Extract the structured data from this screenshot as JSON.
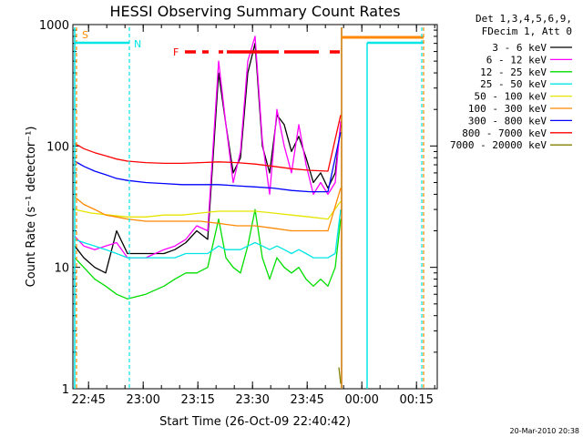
{
  "chart_data": {
    "type": "line",
    "title": "HESSI Observing Summary Count Rates",
    "xlabel": "Start Time (26-Oct-09 22:40:42)",
    "ylabel": "Count Rate (s⁻¹ detector⁻¹)",
    "x_unit": "minutes after 22:40:42",
    "xlim": [
      0,
      100
    ],
    "ylim": [
      1,
      1000
    ],
    "y_scale": "log",
    "x_tick_labels": [
      "22:45",
      "23:00",
      "23:15",
      "23:30",
      "23:45",
      "00:00",
      "00:15"
    ],
    "y_tick_labels": [
      "1",
      "10",
      "100",
      "1000"
    ],
    "legend_header": [
      "Det 1,3,4,5,6,9,",
      "FDecim 1, Att 0"
    ],
    "series": [
      {
        "name": "3 - 6 keV",
        "color": "#000000",
        "x": [
          0.5,
          3,
          6,
          9,
          12,
          15,
          20,
          25,
          28,
          31,
          34,
          37,
          40,
          42,
          44,
          46,
          48,
          50,
          52,
          54,
          56,
          58,
          60,
          62,
          64,
          66,
          68,
          70,
          72,
          73.5
        ],
        "y": [
          15,
          12,
          10,
          9,
          20,
          13,
          13,
          13,
          14,
          16,
          20,
          17,
          400,
          150,
          60,
          80,
          400,
          700,
          100,
          60,
          180,
          150,
          90,
          120,
          80,
          50,
          60,
          45,
          60,
          150
        ]
      },
      {
        "name": "6 - 12 keV",
        "color": "#ff00ff",
        "x": [
          0.5,
          3,
          6,
          9,
          12,
          15,
          20,
          25,
          28,
          31,
          34,
          37,
          40,
          42,
          44,
          46,
          48,
          50,
          52,
          54,
          56,
          58,
          60,
          62,
          64,
          66,
          68,
          70,
          72,
          73.5
        ],
        "y": [
          18,
          15,
          14,
          15,
          16,
          12,
          12,
          14,
          15,
          17,
          22,
          20,
          500,
          150,
          50,
          90,
          500,
          800,
          110,
          40,
          200,
          100,
          60,
          150,
          70,
          40,
          50,
          40,
          50,
          160
        ]
      },
      {
        "name": "12 - 25 keV",
        "color": "#00dd00",
        "x": [
          0.5,
          3,
          6,
          9,
          12,
          15,
          20,
          25,
          28,
          31,
          34,
          37,
          40,
          42,
          44,
          46,
          48,
          50,
          52,
          54,
          56,
          58,
          60,
          62,
          64,
          66,
          68,
          70,
          72,
          73.5
        ],
        "y": [
          12,
          10,
          8,
          7,
          6,
          5.5,
          6,
          7,
          8,
          9,
          9,
          10,
          25,
          12,
          10,
          9,
          15,
          30,
          12,
          8,
          12,
          10,
          9,
          10,
          8,
          7,
          8,
          7,
          10,
          25
        ]
      },
      {
        "name": "25 - 50 keV",
        "color": "#00e5e5",
        "x": [
          0.5,
          3,
          6,
          9,
          12,
          15,
          20,
          25,
          28,
          31,
          34,
          37,
          40,
          42,
          44,
          46,
          48,
          50,
          52,
          54,
          56,
          58,
          60,
          62,
          64,
          66,
          68,
          70,
          72,
          73.5
        ],
        "y": [
          17,
          16,
          15,
          14,
          13,
          12,
          12,
          12,
          12,
          13,
          13,
          13,
          15,
          14,
          14,
          14,
          15,
          16,
          15,
          14,
          15,
          14,
          13,
          14,
          13,
          12,
          12,
          12,
          13,
          30
        ]
      },
      {
        "name": "50 - 100 keV",
        "color": "#e5e500",
        "x": [
          0.5,
          5,
          10,
          15,
          20,
          25,
          30,
          35,
          40,
          45,
          50,
          55,
          60,
          65,
          70,
          73.5
        ],
        "y": [
          30,
          28,
          27,
          26,
          26,
          27,
          27,
          28,
          29,
          29,
          29,
          28,
          27,
          26,
          25,
          35
        ]
      },
      {
        "name": "100 - 300 keV",
        "color": "#ff8800",
        "x": [
          0.5,
          3,
          6,
          9,
          12,
          15,
          20,
          25,
          30,
          35,
          40,
          45,
          50,
          55,
          60,
          65,
          70,
          73.5
        ],
        "y": [
          38,
          33,
          30,
          27,
          26,
          25,
          24,
          24,
          24,
          24,
          23,
          22,
          22,
          21,
          20,
          20,
          20,
          45
        ]
      },
      {
        "name": "300 - 800 keV",
        "color": "#0000ff",
        "x": [
          0.5,
          3,
          6,
          9,
          12,
          15,
          20,
          25,
          30,
          35,
          40,
          45,
          50,
          55,
          60,
          65,
          70,
          73.5
        ],
        "y": [
          75,
          68,
          62,
          58,
          54,
          52,
          50,
          49,
          48,
          48,
          48,
          47,
          46,
          45,
          43,
          42,
          42,
          130
        ]
      },
      {
        "name": "800 - 7000 keV",
        "color": "#ff0000",
        "x": [
          0.5,
          3,
          6,
          9,
          12,
          15,
          20,
          25,
          30,
          35,
          40,
          45,
          50,
          55,
          60,
          65,
          70,
          73.5
        ],
        "y": [
          105,
          95,
          88,
          83,
          78,
          75,
          73,
          72,
          72,
          73,
          74,
          73,
          71,
          68,
          65,
          63,
          62,
          180
        ]
      },
      {
        "name": "7000 - 20000 keV",
        "color": "#808000",
        "x": [
          73,
          73.5
        ],
        "y": [
          1.5,
          1.1
        ]
      }
    ],
    "event_marks": {
      "S": {
        "label": "S",
        "color": "#ff8800"
      },
      "N": {
        "label": "N",
        "color": "#00e5e5"
      },
      "F": {
        "label": "F",
        "color": "#ff0000"
      }
    },
    "date_stamp": "20-Mar-2010 20:38"
  }
}
